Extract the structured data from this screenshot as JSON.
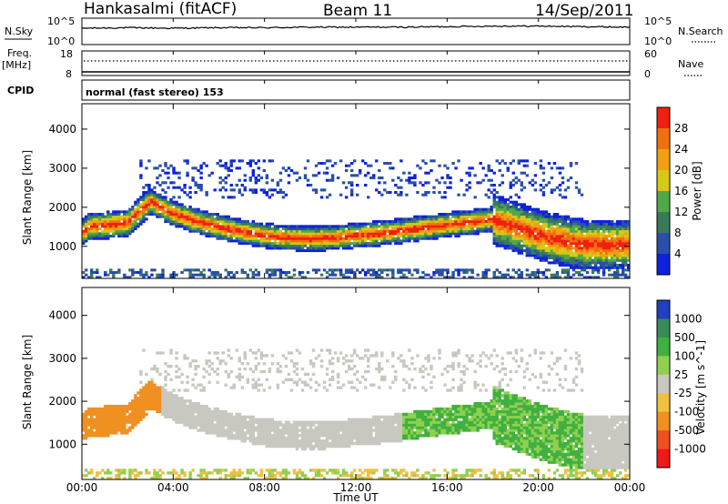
{
  "header": {
    "station": "Hankasalmi (fitACF)",
    "beam": "Beam 11",
    "date": "14/Sep/2011"
  },
  "noise_panel": {
    "left_label": "N.Sky",
    "right_label": "N.Search",
    "tick_top": "10^5",
    "tick_bottom": "10^0"
  },
  "freq_panel": {
    "label_line1": "Freq.",
    "label_line2": "[MHz]",
    "left_ticks": [
      "18",
      "8"
    ],
    "right_ticks": [
      "60",
      "0"
    ],
    "right_label": "Nave"
  },
  "cpid": {
    "label": "CPID",
    "text": "normal (fast stereo) 153"
  },
  "x_axis": {
    "label": "Time UT",
    "ticks": [
      "00:00",
      "04:00",
      "08:00",
      "12:00",
      "16:00",
      "20:00",
      "00:00"
    ]
  },
  "power_panel": {
    "ylabel": "Slant Range [km]",
    "yticks": [
      "1000",
      "2000",
      "3000",
      "4000"
    ],
    "colorbar_label": "Power [dB]",
    "colorbar_ticks": [
      "4",
      "8",
      "12",
      "16",
      "20",
      "24",
      "28"
    ],
    "colors": [
      "#1020e0",
      "#2850a8",
      "#3a7a5a",
      "#50a848",
      "#d8c818",
      "#f0a010",
      "#f07010",
      "#f02010"
    ]
  },
  "velocity_panel": {
    "ylabel": "Slant Range [km]",
    "yticks": [
      "1000",
      "2000",
      "3000",
      "4000"
    ],
    "colorbar_label": "Velocity [m s^-1]",
    "colorbar_ticks": [
      "1000",
      "500",
      "100",
      "25",
      "-25",
      "-100",
      "-500",
      "-1000"
    ],
    "colors": [
      "#2040c0",
      "#3a8a5a",
      "#40b040",
      "#90d050",
      "#c8c8c0",
      "#f0c040",
      "#f09020",
      "#f05020",
      "#f01818"
    ]
  },
  "chart_data": [
    {
      "type": "line",
      "title": "",
      "xlabel": "",
      "ylabel": "N.Sky",
      "x_hours": [
        0,
        2,
        4,
        6,
        8,
        10,
        12,
        14,
        16,
        18,
        20,
        22,
        24
      ],
      "y_log10": [
        3.1,
        3.2,
        3.1,
        3.2,
        3.2,
        3.3,
        3.3,
        3.3,
        3.4,
        3.5,
        3.5,
        3.4,
        3.3
      ],
      "ylim": [
        "10^0",
        "10^5"
      ]
    },
    {
      "type": "line",
      "title": "",
      "ylabel": "Freq. [MHz]",
      "x_hours": [
        0,
        24
      ],
      "y": [
        11.5,
        11.5
      ],
      "ylim": [
        8,
        18
      ]
    },
    {
      "type": "heatmap",
      "title": "",
      "xlabel": "Time UT",
      "ylabel": "Slant Range [km]",
      "colorbar": "Power [dB]",
      "xlim_hours": [
        0,
        24
      ],
      "ylim_km": [
        180,
        4650
      ],
      "band_center_km": [
        [
          0.0,
          1350
        ],
        [
          0.3,
          1500
        ],
        [
          2.0,
          1600
        ],
        [
          3.0,
          2150
        ],
        [
          4.0,
          1850
        ],
        [
          5.0,
          1650
        ],
        [
          6.0,
          1500
        ],
        [
          7.0,
          1380
        ],
        [
          8.0,
          1280
        ],
        [
          9.0,
          1220
        ],
        [
          10.0,
          1200
        ],
        [
          11.0,
          1220
        ],
        [
          12.0,
          1280
        ],
        [
          13.0,
          1330
        ],
        [
          14.0,
          1400
        ],
        [
          15.0,
          1480
        ],
        [
          16.0,
          1550
        ],
        [
          17.0,
          1620
        ],
        [
          18.0,
          1700
        ],
        [
          19.0,
          1500
        ],
        [
          20.0,
          1300
        ],
        [
          21.0,
          1150
        ],
        [
          22.0,
          1050
        ],
        [
          23.0,
          1050
        ],
        [
          24.0,
          1050
        ]
      ],
      "clim_dB": [
        0,
        30
      ]
    },
    {
      "type": "heatmap",
      "title": "",
      "xlabel": "Time UT",
      "ylabel": "Slant Range [km]",
      "colorbar": "Velocity [m s^-1]",
      "xlim_hours": [
        0,
        24
      ],
      "ylim_km": [
        180,
        4650
      ],
      "clim_ms": [
        -1000,
        1000
      ]
    }
  ]
}
